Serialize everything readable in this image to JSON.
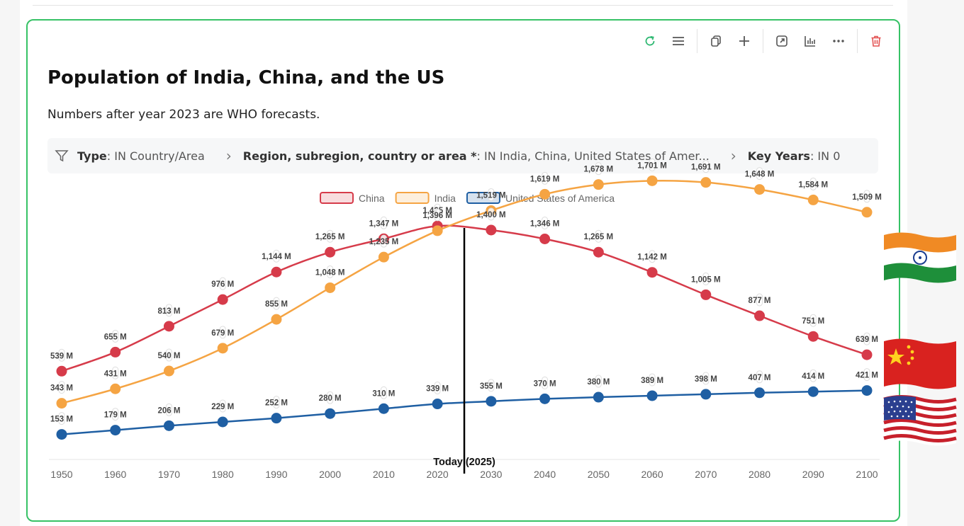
{
  "card": {
    "title": "Population of India, China, and the US",
    "subtitle": "Numbers after year 2023 are WHO forecasts.",
    "toolbar": [
      "refresh-icon",
      "menu-icon",
      "copy-icon",
      "add-icon",
      "expand-icon",
      "chart-icon",
      "more-icon",
      "delete-icon"
    ],
    "colors": {
      "border": "#37c266",
      "refresh": "#2eb872",
      "delete": "#e35353"
    }
  },
  "filters": [
    {
      "label": "Type",
      "value": ": IN Country/Area"
    },
    {
      "label": "Region, subregion, country or area *",
      "value": ": IN India, China, United States of Amer..."
    },
    {
      "label": "Key Years",
      "value": ": IN 0"
    }
  ],
  "chart_data": {
    "type": "line",
    "x": [
      1950,
      1960,
      1970,
      1980,
      1990,
      2000,
      2010,
      2020,
      2030,
      2040,
      2050,
      2060,
      2070,
      2080,
      2090,
      2100
    ],
    "series": [
      {
        "name": "China",
        "color": "#d63b4a",
        "values": [
          539,
          655,
          813,
          976,
          1144,
          1265,
          1347,
          1425,
          1400,
          1346,
          1265,
          1142,
          1005,
          877,
          751,
          639
        ],
        "labels": [
          "539 M",
          "655 M",
          "813 M",
          "976 M",
          "1,144 M",
          "1,265 M",
          "1,347 M",
          "1,425 M",
          "1,400 M",
          "1,346 M",
          "1,265 M",
          "1,142 M",
          "1,005 M",
          "877 M",
          "751 M",
          "639 M"
        ]
      },
      {
        "name": "India",
        "color": "#f5a443",
        "values": [
          343,
          431,
          540,
          679,
          855,
          1048,
          1235,
          1396,
          1519,
          1619,
          1678,
          1701,
          1691,
          1648,
          1584,
          1509
        ],
        "labels": [
          "343 M",
          "431 M",
          "540 M",
          "679 M",
          "855 M",
          "1,048 M",
          "1,235 M",
          "1,396 M",
          "1,519 M",
          "1,619 M",
          "1,678 M",
          "1,701 M",
          "1,691 M",
          "1,648 M",
          "1,584 M",
          "1,509 M"
        ]
      },
      {
        "name": "United States of America",
        "color": "#1f5fa3",
        "values": [
          153,
          179,
          206,
          229,
          252,
          280,
          310,
          339,
          355,
          370,
          380,
          389,
          398,
          407,
          414,
          421
        ],
        "labels": [
          "153 M",
          "179 M",
          "206 M",
          "229 M",
          "252 M",
          "280 M",
          "310 M",
          "339 M",
          "355 M",
          "370 M",
          "380 M",
          "389 M",
          "398 M",
          "407 M",
          "414 M",
          "421 M"
        ]
      }
    ],
    "ylim": [
      0,
      1750
    ],
    "annotation": {
      "x": 2025,
      "text": "Today (2025)"
    },
    "legend_position": "top-center",
    "grid": false
  }
}
